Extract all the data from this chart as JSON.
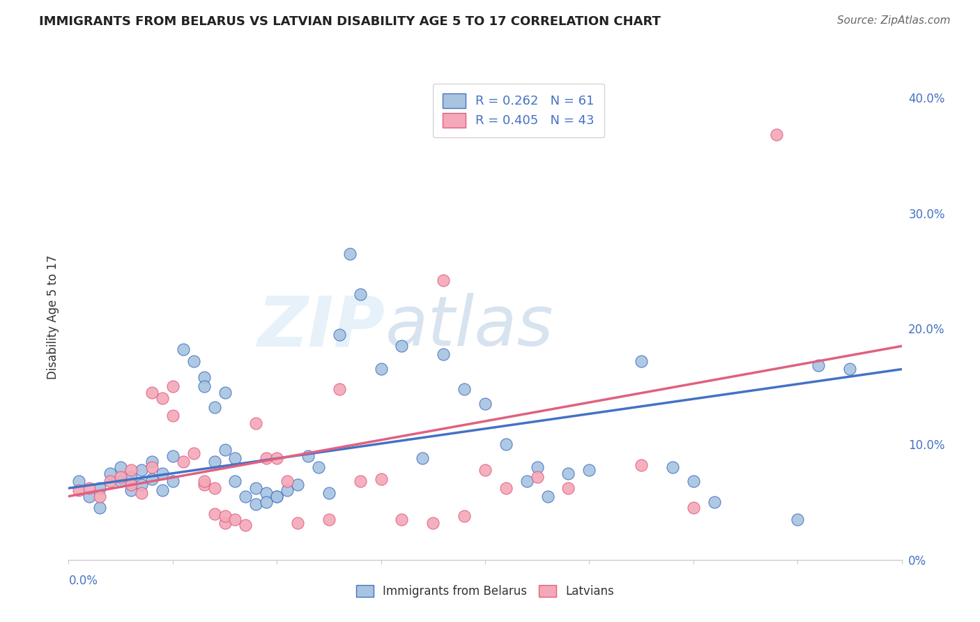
{
  "title": "IMMIGRANTS FROM BELARUS VS LATVIAN DISABILITY AGE 5 TO 17 CORRELATION CHART",
  "source": "Source: ZipAtlas.com",
  "ylabel": "Disability Age 5 to 17",
  "legend_blue_label": "R = 0.262   N = 61",
  "legend_pink_label": "R = 0.405   N = 43",
  "legend_bottom_blue": "Immigrants from Belarus",
  "legend_bottom_pink": "Latvians",
  "blue_color": "#a8c4e0",
  "pink_color": "#f4a8b8",
  "blue_line_color": "#4472c4",
  "pink_line_color": "#e06080",
  "blue_scatter": [
    [
      0.001,
      0.068
    ],
    [
      0.002,
      0.055
    ],
    [
      0.003,
      0.062
    ],
    [
      0.003,
      0.045
    ],
    [
      0.004,
      0.075
    ],
    [
      0.005,
      0.08
    ],
    [
      0.005,
      0.068
    ],
    [
      0.006,
      0.072
    ],
    [
      0.006,
      0.06
    ],
    [
      0.007,
      0.078
    ],
    [
      0.007,
      0.065
    ],
    [
      0.008,
      0.085
    ],
    [
      0.008,
      0.07
    ],
    [
      0.009,
      0.06
    ],
    [
      0.009,
      0.075
    ],
    [
      0.01,
      0.068
    ],
    [
      0.01,
      0.09
    ],
    [
      0.011,
      0.182
    ],
    [
      0.012,
      0.172
    ],
    [
      0.013,
      0.158
    ],
    [
      0.013,
      0.15
    ],
    [
      0.014,
      0.132
    ],
    [
      0.014,
      0.085
    ],
    [
      0.015,
      0.095
    ],
    [
      0.015,
      0.145
    ],
    [
      0.016,
      0.088
    ],
    [
      0.016,
      0.068
    ],
    [
      0.017,
      0.055
    ],
    [
      0.018,
      0.062
    ],
    [
      0.018,
      0.048
    ],
    [
      0.019,
      0.058
    ],
    [
      0.019,
      0.05
    ],
    [
      0.02,
      0.055
    ],
    [
      0.02,
      0.055
    ],
    [
      0.021,
      0.06
    ],
    [
      0.022,
      0.065
    ],
    [
      0.023,
      0.09
    ],
    [
      0.024,
      0.08
    ],
    [
      0.025,
      0.058
    ],
    [
      0.026,
      0.195
    ],
    [
      0.027,
      0.265
    ],
    [
      0.028,
      0.23
    ],
    [
      0.03,
      0.165
    ],
    [
      0.032,
      0.185
    ],
    [
      0.034,
      0.088
    ],
    [
      0.036,
      0.178
    ],
    [
      0.038,
      0.148
    ],
    [
      0.04,
      0.135
    ],
    [
      0.042,
      0.1
    ],
    [
      0.044,
      0.068
    ],
    [
      0.045,
      0.08
    ],
    [
      0.046,
      0.055
    ],
    [
      0.048,
      0.075
    ],
    [
      0.05,
      0.078
    ],
    [
      0.055,
      0.172
    ],
    [
      0.058,
      0.08
    ],
    [
      0.06,
      0.068
    ],
    [
      0.062,
      0.05
    ],
    [
      0.07,
      0.035
    ],
    [
      0.072,
      0.168
    ],
    [
      0.075,
      0.165
    ]
  ],
  "pink_scatter": [
    [
      0.001,
      0.06
    ],
    [
      0.002,
      0.062
    ],
    [
      0.003,
      0.055
    ],
    [
      0.004,
      0.068
    ],
    [
      0.005,
      0.072
    ],
    [
      0.006,
      0.065
    ],
    [
      0.006,
      0.078
    ],
    [
      0.007,
      0.058
    ],
    [
      0.008,
      0.08
    ],
    [
      0.008,
      0.145
    ],
    [
      0.009,
      0.14
    ],
    [
      0.01,
      0.125
    ],
    [
      0.01,
      0.15
    ],
    [
      0.011,
      0.085
    ],
    [
      0.012,
      0.092
    ],
    [
      0.013,
      0.065
    ],
    [
      0.013,
      0.068
    ],
    [
      0.014,
      0.062
    ],
    [
      0.014,
      0.04
    ],
    [
      0.015,
      0.032
    ],
    [
      0.015,
      0.038
    ],
    [
      0.016,
      0.035
    ],
    [
      0.017,
      0.03
    ],
    [
      0.018,
      0.118
    ],
    [
      0.019,
      0.088
    ],
    [
      0.02,
      0.088
    ],
    [
      0.021,
      0.068
    ],
    [
      0.022,
      0.032
    ],
    [
      0.025,
      0.035
    ],
    [
      0.026,
      0.148
    ],
    [
      0.028,
      0.068
    ],
    [
      0.03,
      0.07
    ],
    [
      0.032,
      0.035
    ],
    [
      0.035,
      0.032
    ],
    [
      0.036,
      0.242
    ],
    [
      0.038,
      0.038
    ],
    [
      0.04,
      0.078
    ],
    [
      0.042,
      0.062
    ],
    [
      0.045,
      0.072
    ],
    [
      0.048,
      0.062
    ],
    [
      0.055,
      0.082
    ],
    [
      0.06,
      0.045
    ],
    [
      0.068,
      0.368
    ]
  ],
  "blue_line": [
    [
      0.0,
      0.062
    ],
    [
      0.08,
      0.165
    ]
  ],
  "pink_line": [
    [
      0.0,
      0.055
    ],
    [
      0.08,
      0.185
    ]
  ],
  "xlim": [
    0.0,
    0.08
  ],
  "ylim": [
    0.0,
    0.42
  ],
  "yticks_right": [
    0.0,
    0.1,
    0.2,
    0.3,
    0.4
  ],
  "ytick_labels_right": [
    "0%",
    "10.0%",
    "20.0%",
    "30.0%",
    "40.0%"
  ],
  "watermark_zip": "ZIP",
  "watermark_atlas": "atlas",
  "background_color": "#ffffff",
  "grid_color": "#dde4ee"
}
